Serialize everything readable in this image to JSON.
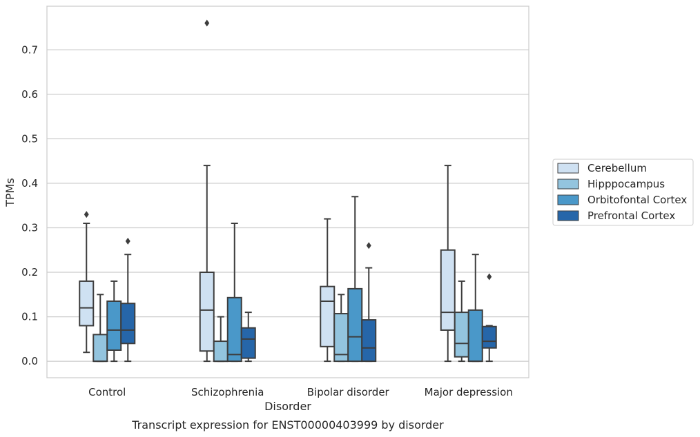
{
  "chart_data": {
    "type": "box",
    "caption": "Transcript expression for ENST00000403999 by disorder",
    "xlabel": "Disorder",
    "ylabel": "TPMs",
    "ylim": [
      -0.037,
      0.798
    ],
    "yticks": [
      0.0,
      0.1,
      0.2,
      0.3,
      0.4,
      0.5,
      0.6,
      0.7
    ],
    "ytick_labels": [
      "0.0",
      "0.1",
      "0.2",
      "0.3",
      "0.4",
      "0.5",
      "0.6",
      "0.7"
    ],
    "grid": true,
    "legend_position": "right",
    "categories": [
      "Control",
      "Schizophrenia",
      "Bipolar disorder",
      "Major depression"
    ],
    "series": [
      {
        "name": "Cerebellum",
        "color": "#cfe1f2",
        "boxes": [
          {
            "whisker_low": 0.02,
            "q1": 0.08,
            "median": 0.12,
            "q3": 0.18,
            "whisker_high": 0.31,
            "outliers": [
              0.33
            ]
          },
          {
            "whisker_low": 0.0,
            "q1": 0.023,
            "median": 0.115,
            "q3": 0.2,
            "whisker_high": 0.44,
            "outliers": [
              0.76
            ]
          },
          {
            "whisker_low": 0.0,
            "q1": 0.033,
            "median": 0.135,
            "q3": 0.168,
            "whisker_high": 0.32,
            "outliers": []
          },
          {
            "whisker_low": 0.0,
            "q1": 0.07,
            "median": 0.11,
            "q3": 0.25,
            "whisker_high": 0.44,
            "outliers": []
          }
        ]
      },
      {
        "name": "Hipppocampus",
        "color": "#93c4de",
        "boxes": [
          {
            "whisker_low": 0.0,
            "q1": 0.0,
            "median": 0.0,
            "q3": 0.06,
            "whisker_high": 0.15,
            "outliers": []
          },
          {
            "whisker_low": 0.0,
            "q1": 0.0,
            "median": 0.0,
            "q3": 0.045,
            "whisker_high": 0.1,
            "outliers": []
          },
          {
            "whisker_low": 0.0,
            "q1": 0.0,
            "median": 0.015,
            "q3": 0.107,
            "whisker_high": 0.15,
            "outliers": []
          },
          {
            "whisker_low": 0.0,
            "q1": 0.01,
            "median": 0.04,
            "q3": 0.11,
            "whisker_high": 0.18,
            "outliers": []
          }
        ]
      },
      {
        "name": "Orbitofontal Cortex",
        "color": "#4a98c9",
        "boxes": [
          {
            "whisker_low": 0.0,
            "q1": 0.025,
            "median": 0.07,
            "q3": 0.135,
            "whisker_high": 0.18,
            "outliers": []
          },
          {
            "whisker_low": 0.0,
            "q1": 0.0,
            "median": 0.015,
            "q3": 0.143,
            "whisker_high": 0.31,
            "outliers": []
          },
          {
            "whisker_low": 0.0,
            "q1": 0.0,
            "median": 0.055,
            "q3": 0.163,
            "whisker_high": 0.37,
            "outliers": []
          },
          {
            "whisker_low": 0.0,
            "q1": 0.0,
            "median": 0.0,
            "q3": 0.115,
            "whisker_high": 0.24,
            "outliers": []
          }
        ]
      },
      {
        "name": "Prefrontal Cortex",
        "color": "#2666a9",
        "boxes": [
          {
            "whisker_low": 0.0,
            "q1": 0.04,
            "median": 0.07,
            "q3": 0.13,
            "whisker_high": 0.24,
            "outliers": [
              0.27
            ]
          },
          {
            "whisker_low": 0.0,
            "q1": 0.007,
            "median": 0.05,
            "q3": 0.075,
            "whisker_high": 0.11,
            "outliers": []
          },
          {
            "whisker_low": 0.0,
            "q1": 0.0,
            "median": 0.03,
            "q3": 0.093,
            "whisker_high": 0.21,
            "outliers": [
              0.26
            ]
          },
          {
            "whisker_low": 0.0,
            "q1": 0.03,
            "median": 0.045,
            "q3": 0.078,
            "whisker_high": 0.08,
            "outliers": [
              0.19
            ]
          }
        ]
      }
    ]
  }
}
